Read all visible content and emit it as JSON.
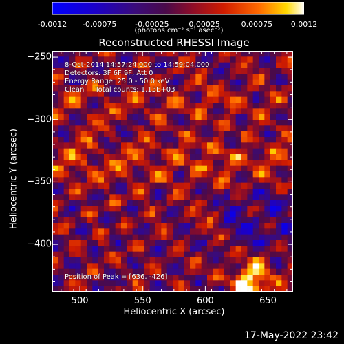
{
  "chart_data": {
    "type": "heatmap",
    "title": "Reconstructed RHESSI Image",
    "xlabel": "Heliocentric X (arcsec)",
    "ylabel": "Heliocentric Y (arcsec)",
    "xlim": [
      478,
      670
    ],
    "ylim": [
      -438,
      -245
    ],
    "xticks": [
      500,
      550,
      600,
      650
    ],
    "yticks": [
      -250,
      -300,
      -350,
      -400
    ],
    "colorbar": {
      "min": -0.0012,
      "max": 0.0012,
      "ticks": [
        "-0.0012",
        "-0.00075",
        "-0.00025",
        "0.00025",
        "0.00075",
        "0.0012"
      ],
      "tick_values": [
        -0.0012,
        -0.00075,
        -0.00025,
        0.00025,
        0.00075,
        0.0012
      ],
      "unit_label": "(photons cm⁻² s⁻¹ asec⁻²)"
    },
    "annotations": [
      "8-Oct-2014 14:57:24.000 to 14:59:04.000",
      "Detectors: 3F 6F 9F, Att 0",
      "Energy Range: 25.0 - 50.0 keV",
      "Clean     Total counts: 1.13E+03"
    ],
    "peak_label": "Position of Peak = [636, -426]",
    "peak": [
      636,
      -426
    ],
    "grid": false
  },
  "footer": {
    "date": "17-May-2022 23:42"
  }
}
